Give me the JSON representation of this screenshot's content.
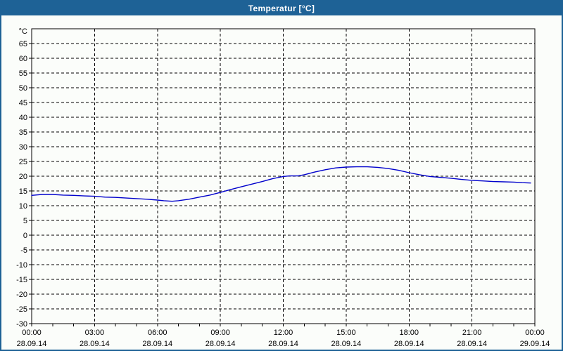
{
  "window": {
    "title": "Temperatur [°C]"
  },
  "colors": {
    "titlebar": "#1e6296",
    "titlebar_text": "#ffffff",
    "background": "#fbfdfa",
    "grid": "#000000",
    "axis": "#000000",
    "line": "#0000cc"
  },
  "chart_data": {
    "type": "line",
    "title": "Temperatur [°C]",
    "y_unit_label": "°C",
    "ylim": [
      -30,
      70
    ],
    "y_ticks": [
      65,
      60,
      55,
      50,
      45,
      40,
      35,
      30,
      25,
      20,
      15,
      10,
      5,
      0,
      -5,
      -10,
      -15,
      -20,
      -25,
      -30
    ],
    "xlim_hours": [
      0,
      24
    ],
    "x_minor_tick_every_hours": 1,
    "x_major_tick_every_hours": 3,
    "grid_style": "dashed",
    "legend": "none",
    "x_ticks": [
      {
        "hour": 0,
        "time": "00:00",
        "date": "28.09.14"
      },
      {
        "hour": 3,
        "time": "03:00",
        "date": "28.09.14"
      },
      {
        "hour": 6,
        "time": "06:00",
        "date": "28.09.14"
      },
      {
        "hour": 9,
        "time": "09:00",
        "date": "28.09.14"
      },
      {
        "hour": 12,
        "time": "12:00",
        "date": "28.09.14"
      },
      {
        "hour": 15,
        "time": "15:00",
        "date": "28.09.14"
      },
      {
        "hour": 18,
        "time": "18:00",
        "date": "28.09.14"
      },
      {
        "hour": 21,
        "time": "21:00",
        "date": "28.09.14"
      },
      {
        "hour": 24,
        "time": "00:00",
        "date": "29.09.14"
      }
    ],
    "series": [
      {
        "name": "Temperatur",
        "color": "#0000cc",
        "points": [
          [
            0.0,
            13.5
          ],
          [
            0.5,
            13.8
          ],
          [
            1.0,
            13.8
          ],
          [
            1.5,
            13.6
          ],
          [
            2.0,
            13.5
          ],
          [
            2.5,
            13.3
          ],
          [
            3.0,
            13.2
          ],
          [
            3.5,
            12.9
          ],
          [
            4.0,
            12.8
          ],
          [
            4.5,
            12.6
          ],
          [
            5.0,
            12.4
          ],
          [
            5.5,
            12.2
          ],
          [
            6.0,
            11.9
          ],
          [
            6.3,
            11.7
          ],
          [
            6.7,
            11.5
          ],
          [
            7.0,
            11.7
          ],
          [
            7.5,
            12.2
          ],
          [
            8.0,
            12.9
          ],
          [
            8.5,
            13.6
          ],
          [
            9.0,
            14.5
          ],
          [
            9.5,
            15.5
          ],
          [
            10.0,
            16.4
          ],
          [
            10.5,
            17.3
          ],
          [
            11.0,
            18.2
          ],
          [
            11.5,
            19.2
          ],
          [
            12.0,
            19.9
          ],
          [
            12.3,
            20.1
          ],
          [
            12.7,
            20.1
          ],
          [
            13.0,
            20.5
          ],
          [
            13.5,
            21.4
          ],
          [
            14.0,
            22.2
          ],
          [
            14.5,
            22.8
          ],
          [
            15.0,
            23.1
          ],
          [
            15.5,
            23.2
          ],
          [
            16.0,
            23.2
          ],
          [
            16.5,
            23.0
          ],
          [
            17.0,
            22.6
          ],
          [
            17.5,
            22.0
          ],
          [
            18.0,
            21.2
          ],
          [
            18.5,
            20.5
          ],
          [
            19.0,
            19.9
          ],
          [
            19.5,
            19.6
          ],
          [
            20.0,
            19.3
          ],
          [
            20.5,
            18.9
          ],
          [
            21.0,
            18.6
          ],
          [
            21.5,
            18.4
          ],
          [
            22.0,
            18.2
          ],
          [
            22.5,
            18.1
          ],
          [
            23.0,
            18.0
          ],
          [
            23.4,
            17.8
          ],
          [
            23.8,
            17.7
          ]
        ]
      }
    ]
  }
}
